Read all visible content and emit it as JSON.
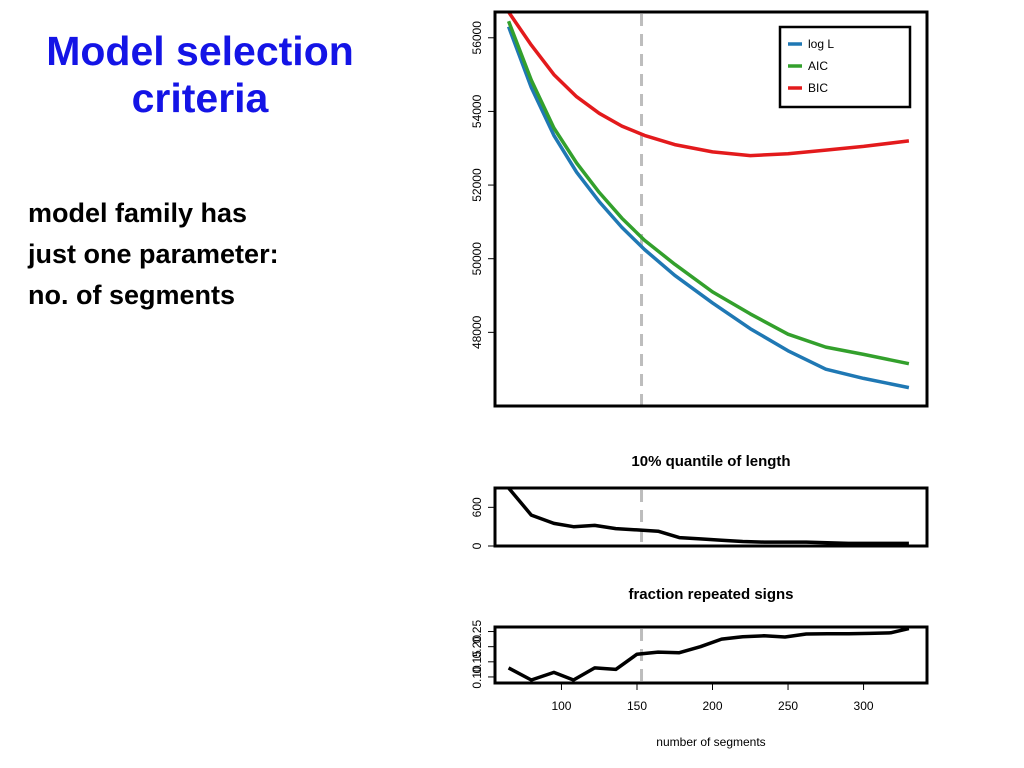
{
  "slide": {
    "title_lines": [
      "Model selection",
      "criteria"
    ],
    "bullet_lines": [
      "model family has",
      "just one parameter:",
      "no. of segments"
    ]
  },
  "chart_data": [
    {
      "type": "line",
      "title": "",
      "xlabel": "",
      "ylabel": "",
      "xlim": [
        56,
        342
      ],
      "ylim": [
        46000,
        56700
      ],
      "yticks": [
        48000,
        50000,
        52000,
        54000,
        56000
      ],
      "x": [
        65,
        80,
        95,
        110,
        125,
        140,
        155,
        175,
        200,
        225,
        250,
        275,
        300,
        330
      ],
      "series": [
        {
          "name": "log L",
          "color": "#1f78b4",
          "values": [
            56300,
            54650,
            53350,
            52350,
            51550,
            50850,
            50250,
            49550,
            48800,
            48100,
            47500,
            47000,
            46750,
            46500
          ]
        },
        {
          "name": "AIC",
          "color": "#33a02c",
          "values": [
            56450,
            54850,
            53550,
            52600,
            51800,
            51100,
            50500,
            49850,
            49100,
            48500,
            47950,
            47600,
            47400,
            47150
          ]
        },
        {
          "name": "BIC",
          "color": "#e31a1c",
          "values": [
            56700,
            55800,
            55000,
            54400,
            53950,
            53600,
            53350,
            53100,
            52900,
            52800,
            52850,
            52950,
            53050,
            53200
          ]
        }
      ],
      "vline": {
        "x": 153,
        "color": "#bdbdbd",
        "style": "dashed"
      },
      "legend": {
        "placement": "top-right",
        "entries": [
          "log L",
          "AIC",
          "BIC"
        ]
      }
    },
    {
      "type": "line",
      "title": "10% quantile of length",
      "xlim": [
        56,
        342
      ],
      "ylim": [
        0,
        900
      ],
      "yticks": [
        0,
        600
      ],
      "x": [
        65,
        80,
        95,
        108,
        122,
        136,
        150,
        164,
        178,
        192,
        206,
        220,
        234,
        248,
        262,
        276,
        290,
        304,
        318,
        330
      ],
      "series": [
        {
          "name": "",
          "color": "#000000",
          "values": [
            900,
            480,
            350,
            300,
            320,
            270,
            250,
            230,
            130,
            110,
            90,
            70,
            60,
            60,
            60,
            50,
            40,
            40,
            40,
            40
          ]
        }
      ],
      "vline": {
        "x": 153,
        "color": "#bdbdbd",
        "style": "dashed"
      }
    },
    {
      "type": "line",
      "title": "fraction repeated signs",
      "xlabel": "number of segments",
      "xlim": [
        56,
        342
      ],
      "ylim": [
        0.08,
        0.265
      ],
      "yticks": [
        0.1,
        0.15,
        0.2,
        0.25
      ],
      "ytick_labels": [
        "0.10",
        "0.15",
        "0.20",
        "0.25"
      ],
      "xticks": [
        100,
        150,
        200,
        250,
        300
      ],
      "x": [
        65,
        80,
        95,
        108,
        122,
        136,
        150,
        164,
        178,
        192,
        206,
        220,
        234,
        248,
        262,
        276,
        290,
        304,
        318,
        330
      ],
      "series": [
        {
          "name": "",
          "color": "#000000",
          "values": [
            0.13,
            0.09,
            0.115,
            0.09,
            0.13,
            0.125,
            0.175,
            0.182,
            0.18,
            0.2,
            0.225,
            0.233,
            0.236,
            0.232,
            0.242,
            0.243,
            0.243,
            0.244,
            0.246,
            0.26
          ]
        }
      ],
      "vline": {
        "x": 153,
        "color": "#bdbdbd",
        "style": "dashed"
      }
    }
  ]
}
